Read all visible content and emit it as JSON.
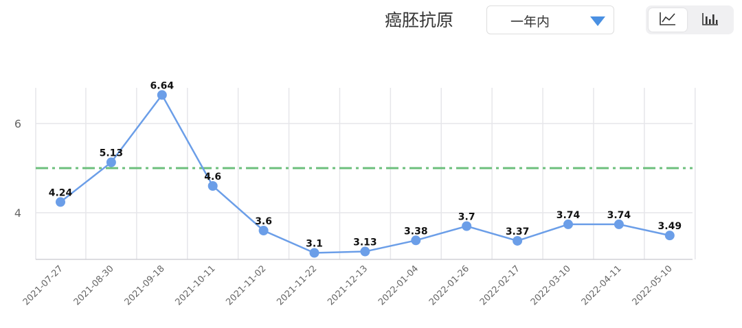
{
  "header": {
    "title": "癌胚抗原",
    "range_select": {
      "value": "一年内",
      "icon": "caret-down-icon"
    },
    "view_toggle": [
      {
        "name": "line-chart-view",
        "icon": "line-chart-icon",
        "active": true
      },
      {
        "name": "bar-chart-view",
        "icon": "bar-chart-icon",
        "active": false
      }
    ]
  },
  "colors": {
    "line": "#6b9ee8",
    "reference_line": "#6cbf7c",
    "grid": "#e6e6ea",
    "label": "#111111",
    "tick": "#666666",
    "caret": "#4a90e2"
  },
  "chart_data": {
    "type": "line",
    "categories": [
      "2021-07-27",
      "2021-08-30",
      "2021-09-18",
      "2021-10-11",
      "2021-11-02",
      "2021-11-22",
      "2021-12-13",
      "2022-01-04",
      "2022-01-26",
      "2022-02-17",
      "2022-03-10",
      "2022-04-11",
      "2022-05-10"
    ],
    "values": [
      4.24,
      5.13,
      6.64,
      4.6,
      3.6,
      3.1,
      3.13,
      3.38,
      3.7,
      3.37,
      3.74,
      3.74,
      3.49
    ],
    "data_labels": [
      "4.24",
      "5.13",
      "6.64",
      "4.6",
      "3.6",
      "3.1",
      "3.13",
      "3.38",
      "3.7",
      "3.37",
      "3.74",
      "3.74",
      "3.49"
    ],
    "reference_line": {
      "value": 5,
      "style": "dash-dot"
    },
    "y_ticks": [
      4,
      6
    ],
    "ylim": [
      3,
      6.8
    ],
    "grid": true,
    "title": "",
    "xlabel": "",
    "ylabel": ""
  }
}
